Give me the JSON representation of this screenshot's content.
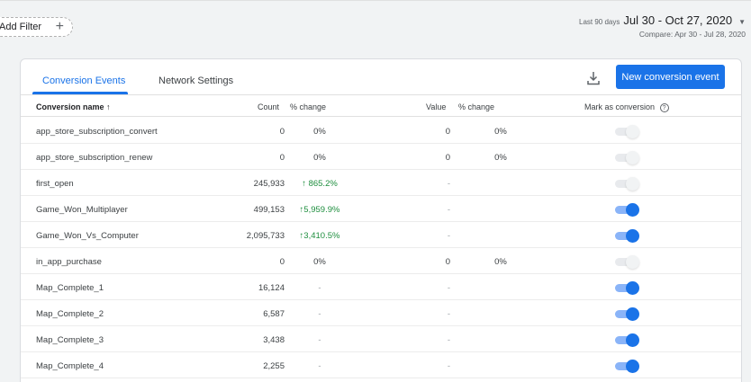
{
  "filter": {
    "add_label": "Add Filter",
    "plus": "+"
  },
  "date": {
    "last_label": "Last 90 days",
    "range": "Jul 30 - Oct 27, 2020",
    "caret": "▼",
    "compare": "Compare: Apr 30 - Jul 28, 2020"
  },
  "tabs": [
    {
      "label": "Conversion Events",
      "active": true
    },
    {
      "label": "Network Settings",
      "active": false
    }
  ],
  "actions": {
    "new_button": "New conversion event",
    "download_icon": "download-icon"
  },
  "columns": {
    "name": "Conversion name ↑",
    "count": "Count",
    "count_change": "% change",
    "value": "Value",
    "value_change": "% change",
    "mark": "Mark as conversion",
    "help": "?"
  },
  "rows": [
    {
      "name": "app_store_subscription_convert",
      "count": "0",
      "count_change": "0%",
      "up": false,
      "value": "0",
      "value_change": "0%",
      "on": false
    },
    {
      "name": "app_store_subscription_renew",
      "count": "0",
      "count_change": "0%",
      "up": false,
      "value": "0",
      "value_change": "0%",
      "on": false
    },
    {
      "name": "first_open",
      "count": "245,933",
      "count_change": "↑ 865.2%",
      "up": true,
      "value": "-",
      "value_change": "",
      "on": false
    },
    {
      "name": "Game_Won_Multiplayer",
      "count": "499,153",
      "count_change": "↑5,959.9%",
      "up": true,
      "value": "-",
      "value_change": "",
      "on": true
    },
    {
      "name": "Game_Won_Vs_Computer",
      "count": "2,095,733",
      "count_change": "↑3,410.5%",
      "up": true,
      "value": "-",
      "value_change": "",
      "on": true
    },
    {
      "name": "in_app_purchase",
      "count": "0",
      "count_change": "0%",
      "up": false,
      "value": "0",
      "value_change": "0%",
      "on": false
    },
    {
      "name": "Map_Complete_1",
      "count": "16,124",
      "count_change": "-",
      "up": false,
      "value": "-",
      "value_change": "",
      "on": true
    },
    {
      "name": "Map_Complete_2",
      "count": "6,587",
      "count_change": "-",
      "up": false,
      "value": "-",
      "value_change": "",
      "on": true
    },
    {
      "name": "Map_Complete_3",
      "count": "3,438",
      "count_change": "-",
      "up": false,
      "value": "-",
      "value_change": "",
      "on": true
    },
    {
      "name": "Map_Complete_4",
      "count": "2,255",
      "count_change": "-",
      "up": false,
      "value": "-",
      "value_change": "",
      "on": true
    }
  ],
  "colors": {
    "accent": "#1a73e8",
    "up": "#1e8e3e",
    "toggle_on_track": "#8ab4f8"
  }
}
